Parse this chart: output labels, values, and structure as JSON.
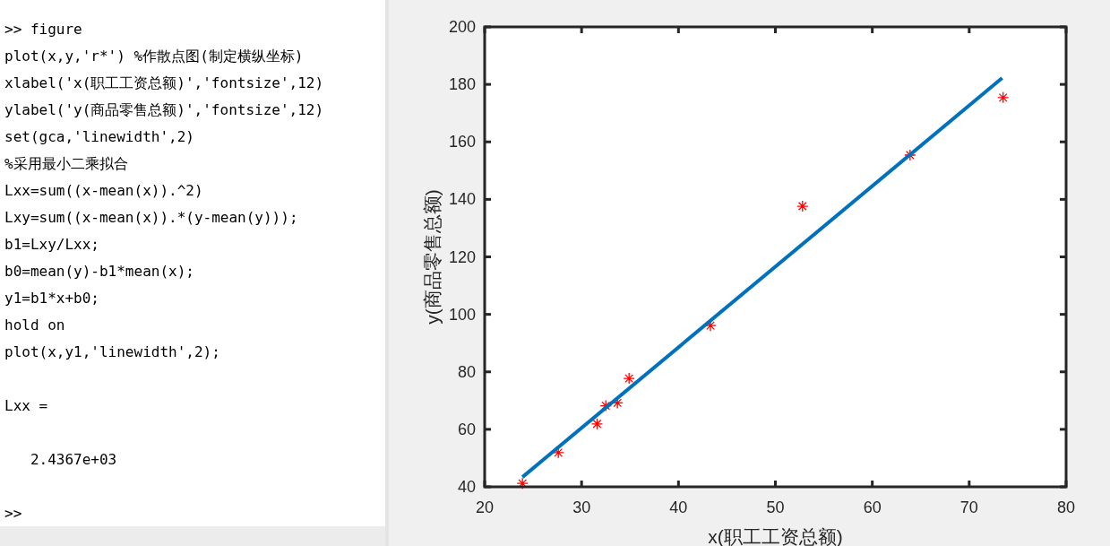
{
  "chart_data": [
    {
      "type": "other",
      "annotations": [
        ">> figure",
        "plot(x,y,'r*') %作散点图(制定横纵坐标)",
        "xlabel('x(职工工资总额)','fontsize',12)",
        "ylabel('y(商品零售总额)','fontsize',12)",
        "set(gca,'linewidth',2)",
        "%采用最小二乘拟合",
        "Lxx=sum((x-mean(x)).^2)",
        "Lxy=sum((x-mean(x)).*(y-mean(y)));",
        "b1=Lxy/Lxx;",
        "b0=mean(y)-b1*mean(x);",
        "y1=b1*x+b0;",
        "hold on",
        "plot(x,y1,'linewidth',2);",
        "Lxx =",
        "   2.4367e+03",
        ">>"
      ]
    },
    {
      "type": "scatter",
      "xlabel": "x(职工工资总额)",
      "ylabel": "y(商品零售总额)",
      "xlim": [
        20,
        80
      ],
      "xticks": [
        20,
        30,
        40,
        50,
        60,
        70,
        80
      ],
      "ylim": [
        40,
        200
      ],
      "yticks": [
        40,
        60,
        80,
        100,
        120,
        140,
        160,
        180,
        200
      ],
      "series": [
        {
          "type": "scatter",
          "marker": "cross",
          "color": "#ff0000",
          "x": [
            23.9,
            27.6,
            31.6,
            32.5,
            33.7,
            34.9,
            43.3,
            52.8,
            63.9,
            73.5
          ],
          "values": [
            41.2,
            51.9,
            61.9,
            68.2,
            69.2,
            77.7,
            96.1,
            137.6,
            155.4,
            175.4
          ]
        },
        {
          "type": "line",
          "color": "#0072bd",
          "x": [
            23.9,
            73.4
          ],
          "values": [
            43.4,
            182.2
          ]
        }
      ]
    }
  ]
}
